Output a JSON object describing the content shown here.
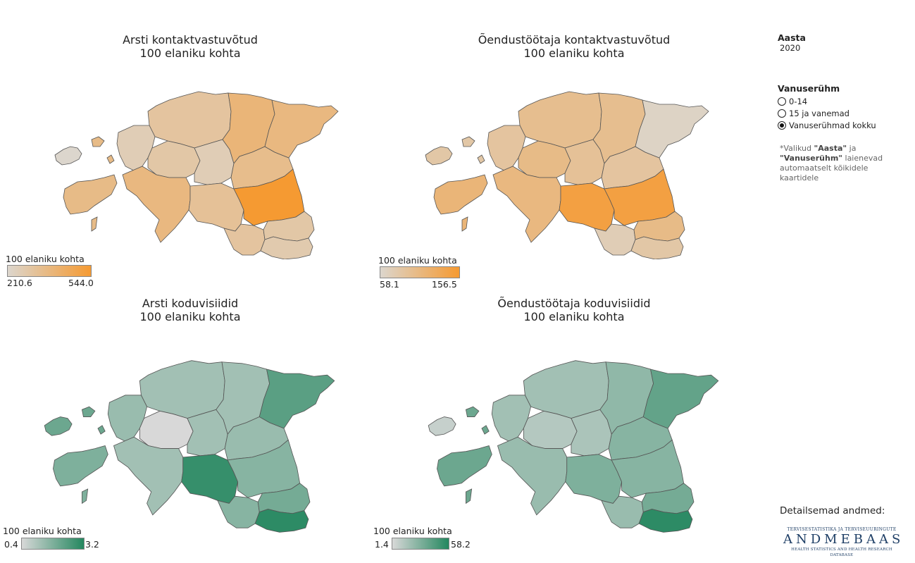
{
  "maps": [
    {
      "title_line1": "Arsti kontaktvastuvõtud",
      "title_line2": "100 elaniku kohta",
      "legend_title": "100 elaniku kohta",
      "legend_min": "210.6",
      "legend_max": "544.0",
      "colors": {
        "low": "#dcd6cd",
        "high": "#f59a32"
      },
      "county_values": [
        0.0,
        0.45,
        0.3,
        0.15,
        0.25,
        0.5,
        0.15,
        0.55,
        0.35,
        0.42,
        0.5,
        0.3,
        1.0,
        0.25,
        0.2,
        0.45
      ]
    },
    {
      "title_line1": "Õendustöötaja kontaktvastuvõtud",
      "title_line2": "100 elaniku kohta",
      "legend_title": "100 elaniku kohta",
      "legend_min": "58.1",
      "legend_max": "156.5",
      "colors": {
        "low": "#dcd6cd",
        "high": "#f59a32"
      },
      "county_values": [
        0.25,
        0.55,
        0.4,
        0.3,
        0.45,
        0.5,
        0.35,
        0.4,
        0.9,
        0.3,
        0.05,
        0.15,
        0.9,
        0.45,
        0.25,
        0.25
      ]
    },
    {
      "title_line1": "Arsti koduvisiidid",
      "title_line2": "100 elaniku kohta",
      "legend_title": "100 elaniku kohta",
      "legend_min": "0.4",
      "legend_max": "3.2",
      "colors": {
        "low": "#d8d8d8",
        "high": "#24875f"
      },
      "county_values": [
        0.6,
        0.5,
        0.3,
        0.35,
        0.0,
        0.3,
        0.3,
        0.3,
        0.9,
        0.35,
        0.7,
        0.45,
        0.45,
        0.55,
        0.95,
        0.6
      ]
    },
    {
      "title_line1": "Õendustöötaja koduvisiidid",
      "title_line2": "100 elaniku kohta",
      "legend_title": "100 elaniku kohta",
      "legend_min": "1.4",
      "legend_max": "58.2",
      "colors": {
        "low": "#d8d8d8",
        "high": "#24875f"
      },
      "county_values": [
        0.1,
        0.6,
        0.3,
        0.3,
        0.2,
        0.35,
        0.25,
        0.4,
        0.5,
        0.45,
        0.65,
        0.35,
        0.45,
        0.55,
        0.95,
        0.6
      ]
    }
  ],
  "sidebar": {
    "year_label": "Aasta",
    "year_value": "2020",
    "age_label": "Vanuserühm",
    "options": [
      "0-14",
      "15 ja vanemad",
      "Vanuserühmad kokku"
    ],
    "selected_option": "Vanuserühmad kokku",
    "note_prefix": "*Valikud ",
    "note_year": "\"Aasta\"",
    "note_and": " ja ",
    "note_age": "\"Vanuserühm\"",
    "note_suffix": " laienevad automaatselt kõikidele kaartidele"
  },
  "footer": {
    "details_label": "Detailsemad andmed:",
    "logo_line1": "TERVISESTATISTIKA JA TERVISEUURINGUTE",
    "logo_line2": "ANDMEBAAS",
    "logo_line3": "HEALTH STATISTICS AND HEALTH RESEARCH DATABASE"
  },
  "chart_data": [
    {
      "type": "choropleth",
      "title": "Arsti kontaktvastuvõtud 100 elaniku kohta",
      "legend_range": [
        210.6,
        544.0
      ]
    },
    {
      "type": "choropleth",
      "title": "Õendustöötaja kontaktvastuvõtud 100 elaniku kohta",
      "legend_range": [
        58.1,
        156.5
      ]
    },
    {
      "type": "choropleth",
      "title": "Arsti koduvisiidid 100 elaniku kohta",
      "legend_range": [
        0.4,
        3.2
      ]
    },
    {
      "type": "choropleth",
      "title": "Õendustöötaja koduvisiidid 100 elaniku kohta",
      "legend_range": [
        1.4,
        58.2
      ]
    }
  ]
}
